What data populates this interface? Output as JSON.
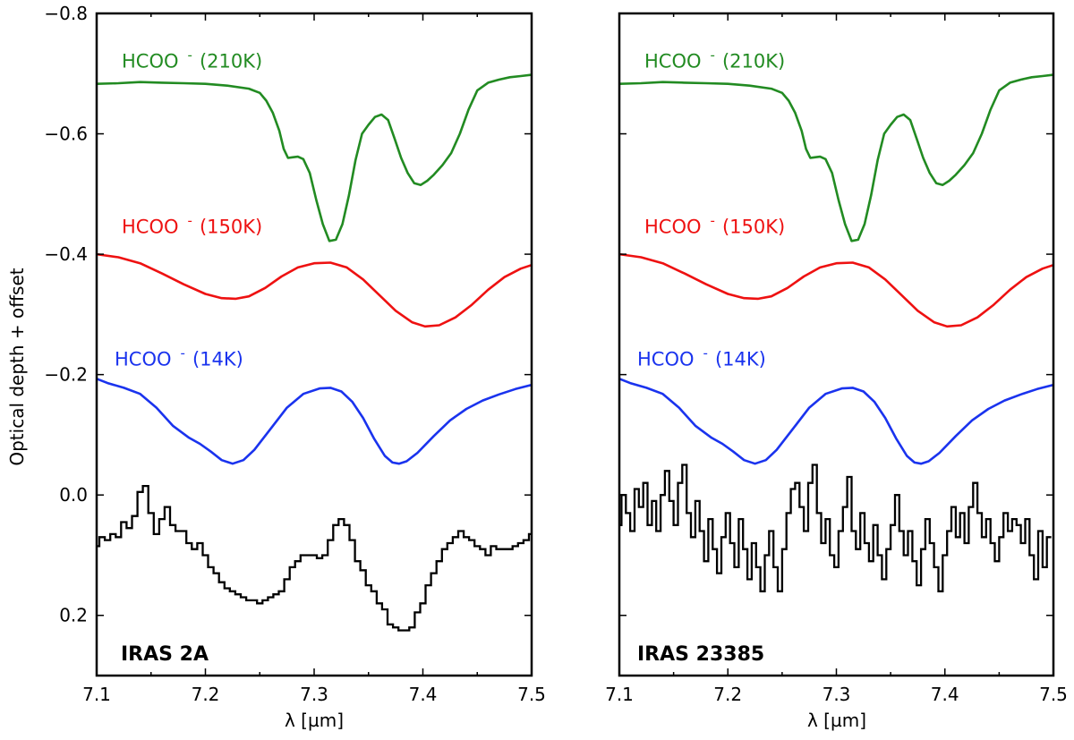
{
  "chart_data": [
    {
      "type": "line",
      "title": "IRAS 2A",
      "xlabel": "λ [µm]",
      "ylabel": "Optical depth + offset",
      "xlim": [
        7.1,
        7.5
      ],
      "ylim": [
        0.3,
        -0.8
      ],
      "x_ticks": [
        "7.1",
        "7.2",
        "7.3",
        "7.4",
        "7.5"
      ],
      "y_ticks": [
        "−0.8",
        "−0.6",
        "−0.4",
        "−0.2",
        "0.0",
        "0.2"
      ],
      "series": [
        {
          "name": "HCOO (210K)",
          "label_main": "HCOO",
          "label_sup": "-",
          "label_paren": "(210K)",
          "color": "#228b22",
          "x": [
            7.1,
            7.12,
            7.14,
            7.16,
            7.18,
            7.2,
            7.22,
            7.24,
            7.25,
            7.256,
            7.262,
            7.268,
            7.272,
            7.276,
            7.28,
            7.285,
            7.29,
            7.296,
            7.302,
            7.308,
            7.314,
            7.32,
            7.326,
            7.332,
            7.338,
            7.344,
            7.35,
            7.356,
            7.362,
            7.368,
            7.374,
            7.38,
            7.386,
            7.392,
            7.398,
            7.404,
            7.41,
            7.418,
            7.426,
            7.434,
            7.442,
            7.45,
            7.46,
            7.47,
            7.48,
            7.49,
            7.5
          ],
          "y": [
            -0.683,
            -0.684,
            -0.686,
            -0.685,
            -0.684,
            -0.683,
            -0.68,
            -0.675,
            -0.668,
            -0.655,
            -0.635,
            -0.605,
            -0.575,
            -0.56,
            -0.561,
            -0.562,
            -0.558,
            -0.535,
            -0.49,
            -0.45,
            -0.422,
            -0.424,
            -0.45,
            -0.498,
            -0.556,
            -0.6,
            -0.615,
            -0.628,
            -0.632,
            -0.623,
            -0.592,
            -0.56,
            -0.535,
            -0.518,
            -0.515,
            -0.522,
            -0.532,
            -0.548,
            -0.568,
            -0.6,
            -0.64,
            -0.672,
            -0.685,
            -0.69,
            -0.694,
            -0.696,
            -0.698
          ]
        },
        {
          "name": "HCOO (150K)",
          "label_main": "HCOO",
          "label_sup": "-",
          "label_paren": "(150K)",
          "color": "#ee1111",
          "x": [
            7.1,
            7.12,
            7.14,
            7.16,
            7.18,
            7.2,
            7.215,
            7.228,
            7.24,
            7.255,
            7.27,
            7.285,
            7.3,
            7.315,
            7.33,
            7.345,
            7.36,
            7.375,
            7.39,
            7.402,
            7.415,
            7.43,
            7.445,
            7.46,
            7.475,
            7.49,
            7.5
          ],
          "y": [
            -0.4,
            -0.395,
            -0.385,
            -0.368,
            -0.35,
            -0.334,
            -0.327,
            -0.326,
            -0.33,
            -0.344,
            -0.363,
            -0.378,
            -0.385,
            -0.386,
            -0.378,
            -0.358,
            -0.332,
            -0.306,
            -0.287,
            -0.28,
            -0.282,
            -0.295,
            -0.316,
            -0.341,
            -0.362,
            -0.376,
            -0.382
          ]
        },
        {
          "name": "HCOO (14K)",
          "label_main": "HCOO",
          "label_sup": "-",
          "label_paren": "(14K)",
          "color": "#1a33ee",
          "x": [
            7.1,
            7.11,
            7.125,
            7.14,
            7.155,
            7.17,
            7.185,
            7.195,
            7.205,
            7.215,
            7.225,
            7.235,
            7.245,
            7.26,
            7.275,
            7.29,
            7.305,
            7.315,
            7.325,
            7.335,
            7.345,
            7.355,
            7.365,
            7.372,
            7.378,
            7.385,
            7.395,
            7.41,
            7.425,
            7.44,
            7.455,
            7.47,
            7.485,
            7.5
          ],
          "y": [
            -0.193,
            -0.186,
            -0.178,
            -0.168,
            -0.145,
            -0.115,
            -0.095,
            -0.085,
            -0.072,
            -0.058,
            -0.052,
            -0.058,
            -0.075,
            -0.11,
            -0.145,
            -0.168,
            -0.177,
            -0.178,
            -0.172,
            -0.155,
            -0.128,
            -0.094,
            -0.065,
            -0.054,
            -0.052,
            -0.056,
            -0.07,
            -0.098,
            -0.124,
            -0.143,
            -0.157,
            -0.167,
            -0.176,
            -0.183
          ]
        },
        {
          "name": "IRAS 2A observed",
          "color": "#000000",
          "x": [
            7.1,
            7.105,
            7.11,
            7.115,
            7.12,
            7.125,
            7.13,
            7.135,
            7.14,
            7.145,
            7.15,
            7.155,
            7.16,
            7.165,
            7.17,
            7.175,
            7.18,
            7.185,
            7.19,
            7.195,
            7.2,
            7.205,
            7.21,
            7.215,
            7.22,
            7.225,
            7.23,
            7.235,
            7.24,
            7.245,
            7.25,
            7.255,
            7.26,
            7.265,
            7.27,
            7.275,
            7.28,
            7.285,
            7.29,
            7.295,
            7.3,
            7.305,
            7.31,
            7.315,
            7.32,
            7.325,
            7.33,
            7.335,
            7.34,
            7.345,
            7.35,
            7.355,
            7.36,
            7.365,
            7.37,
            7.375,
            7.38,
            7.385,
            7.39,
            7.395,
            7.4,
            7.405,
            7.41,
            7.415,
            7.42,
            7.425,
            7.43,
            7.435,
            7.44,
            7.445,
            7.45,
            7.455,
            7.46,
            7.465,
            7.47,
            7.475,
            7.48,
            7.485,
            7.49,
            7.495,
            7.5
          ],
          "y": [
            0.085,
            0.07,
            0.075,
            0.065,
            0.07,
            0.045,
            0.055,
            0.035,
            -0.005,
            -0.015,
            0.03,
            0.065,
            0.04,
            0.02,
            0.05,
            0.06,
            0.06,
            0.08,
            0.09,
            0.08,
            0.1,
            0.12,
            0.13,
            0.145,
            0.155,
            0.16,
            0.165,
            0.17,
            0.175,
            0.175,
            0.18,
            0.175,
            0.17,
            0.165,
            0.16,
            0.14,
            0.12,
            0.11,
            0.1,
            0.1,
            0.1,
            0.105,
            0.1,
            0.075,
            0.05,
            0.04,
            0.05,
            0.075,
            0.11,
            0.125,
            0.15,
            0.16,
            0.18,
            0.19,
            0.215,
            0.22,
            0.225,
            0.225,
            0.22,
            0.195,
            0.18,
            0.15,
            0.13,
            0.11,
            0.09,
            0.08,
            0.07,
            0.06,
            0.07,
            0.075,
            0.085,
            0.09,
            0.1,
            0.085,
            0.09,
            0.09,
            0.09,
            0.085,
            0.08,
            0.075,
            0.065
          ]
        }
      ]
    },
    {
      "type": "line",
      "title": "IRAS 23385",
      "xlabel": "λ [µm]",
      "xlim": [
        7.1,
        7.5
      ],
      "ylim": [
        0.3,
        -0.8
      ],
      "x_ticks": [
        "7.1",
        "7.2",
        "7.3",
        "7.4",
        "7.5"
      ],
      "series": [
        {
          "name": "HCOO (210K)",
          "label_main": "HCOO",
          "label_sup": "-",
          "label_paren": "(210K)",
          "color": "#228b22",
          "x": [
            7.1,
            7.12,
            7.14,
            7.16,
            7.18,
            7.2,
            7.22,
            7.24,
            7.25,
            7.256,
            7.262,
            7.268,
            7.272,
            7.276,
            7.28,
            7.285,
            7.29,
            7.296,
            7.302,
            7.308,
            7.314,
            7.32,
            7.326,
            7.332,
            7.338,
            7.344,
            7.35,
            7.356,
            7.362,
            7.368,
            7.374,
            7.38,
            7.386,
            7.392,
            7.398,
            7.404,
            7.41,
            7.418,
            7.426,
            7.434,
            7.442,
            7.45,
            7.46,
            7.47,
            7.48,
            7.49,
            7.5
          ],
          "y": [
            -0.683,
            -0.684,
            -0.686,
            -0.685,
            -0.684,
            -0.683,
            -0.68,
            -0.675,
            -0.668,
            -0.655,
            -0.635,
            -0.605,
            -0.575,
            -0.56,
            -0.561,
            -0.562,
            -0.558,
            -0.535,
            -0.49,
            -0.45,
            -0.422,
            -0.424,
            -0.45,
            -0.498,
            -0.556,
            -0.6,
            -0.615,
            -0.628,
            -0.632,
            -0.623,
            -0.592,
            -0.56,
            -0.535,
            -0.518,
            -0.515,
            -0.522,
            -0.532,
            -0.548,
            -0.568,
            -0.6,
            -0.64,
            -0.672,
            -0.685,
            -0.69,
            -0.694,
            -0.696,
            -0.698
          ]
        },
        {
          "name": "HCOO (150K)",
          "label_main": "HCOO",
          "label_sup": "-",
          "label_paren": "(150K)",
          "color": "#ee1111",
          "x": [
            7.1,
            7.12,
            7.14,
            7.16,
            7.18,
            7.2,
            7.215,
            7.228,
            7.24,
            7.255,
            7.27,
            7.285,
            7.3,
            7.315,
            7.33,
            7.345,
            7.36,
            7.375,
            7.39,
            7.402,
            7.415,
            7.43,
            7.445,
            7.46,
            7.475,
            7.49,
            7.5
          ],
          "y": [
            -0.4,
            -0.395,
            -0.385,
            -0.368,
            -0.35,
            -0.334,
            -0.327,
            -0.326,
            -0.33,
            -0.344,
            -0.363,
            -0.378,
            -0.385,
            -0.386,
            -0.378,
            -0.358,
            -0.332,
            -0.306,
            -0.287,
            -0.28,
            -0.282,
            -0.295,
            -0.316,
            -0.341,
            -0.362,
            -0.376,
            -0.382
          ]
        },
        {
          "name": "HCOO (14K)",
          "label_main": "HCOO",
          "label_sup": "-",
          "label_paren": "(14K)",
          "color": "#1a33ee",
          "x": [
            7.1,
            7.11,
            7.125,
            7.14,
            7.155,
            7.17,
            7.185,
            7.195,
            7.205,
            7.215,
            7.225,
            7.235,
            7.245,
            7.26,
            7.275,
            7.29,
            7.305,
            7.315,
            7.325,
            7.335,
            7.345,
            7.355,
            7.365,
            7.372,
            7.378,
            7.385,
            7.395,
            7.41,
            7.425,
            7.44,
            7.455,
            7.47,
            7.485,
            7.5
          ],
          "y": [
            -0.193,
            -0.186,
            -0.178,
            -0.168,
            -0.145,
            -0.115,
            -0.095,
            -0.085,
            -0.072,
            -0.058,
            -0.052,
            -0.058,
            -0.075,
            -0.11,
            -0.145,
            -0.168,
            -0.177,
            -0.178,
            -0.172,
            -0.155,
            -0.128,
            -0.094,
            -0.065,
            -0.054,
            -0.052,
            -0.056,
            -0.07,
            -0.098,
            -0.124,
            -0.143,
            -0.157,
            -0.167,
            -0.176,
            -0.183
          ]
        },
        {
          "name": "IRAS 23385 observed",
          "color": "#000000",
          "x": [
            7.1,
            7.104,
            7.108,
            7.112,
            7.116,
            7.12,
            7.124,
            7.128,
            7.132,
            7.136,
            7.14,
            7.144,
            7.148,
            7.152,
            7.156,
            7.16,
            7.164,
            7.168,
            7.172,
            7.176,
            7.18,
            7.184,
            7.188,
            7.192,
            7.196,
            7.2,
            7.204,
            7.208,
            7.212,
            7.216,
            7.22,
            7.224,
            7.228,
            7.232,
            7.236,
            7.24,
            7.244,
            7.248,
            7.252,
            7.256,
            7.26,
            7.264,
            7.268,
            7.272,
            7.276,
            7.28,
            7.284,
            7.288,
            7.292,
            7.296,
            7.3,
            7.304,
            7.308,
            7.312,
            7.316,
            7.32,
            7.324,
            7.328,
            7.332,
            7.336,
            7.34,
            7.344,
            7.348,
            7.352,
            7.356,
            7.36,
            7.364,
            7.368,
            7.372,
            7.376,
            7.38,
            7.384,
            7.388,
            7.392,
            7.396,
            7.4,
            7.404,
            7.408,
            7.412,
            7.416,
            7.42,
            7.424,
            7.428,
            7.432,
            7.436,
            7.44,
            7.444,
            7.448,
            7.452,
            7.456,
            7.46,
            7.464,
            7.468,
            7.472,
            7.476,
            7.48,
            7.484,
            7.488,
            7.492,
            7.496
          ],
          "y": [
            0.05,
            0.0,
            0.03,
            0.06,
            -0.01,
            0.02,
            -0.02,
            0.05,
            0.01,
            0.06,
            0.0,
            -0.04,
            0.01,
            0.05,
            -0.02,
            -0.05,
            0.03,
            0.07,
            0.01,
            0.06,
            0.11,
            0.04,
            0.09,
            0.13,
            0.07,
            0.03,
            0.08,
            0.12,
            0.04,
            0.09,
            0.14,
            0.08,
            0.12,
            0.16,
            0.1,
            0.06,
            0.12,
            0.16,
            0.09,
            0.03,
            -0.01,
            -0.02,
            0.02,
            0.06,
            -0.02,
            -0.05,
            0.03,
            0.08,
            0.04,
            0.1,
            0.12,
            0.06,
            0.02,
            -0.03,
            0.06,
            0.09,
            0.03,
            0.08,
            0.11,
            0.05,
            0.1,
            0.14,
            0.09,
            0.05,
            0.0,
            0.06,
            0.1,
            0.06,
            0.11,
            0.15,
            0.09,
            0.04,
            0.08,
            0.12,
            0.16,
            0.1,
            0.06,
            0.02,
            0.07,
            0.03,
            0.08,
            0.02,
            -0.02,
            0.03,
            0.07,
            0.04,
            0.08,
            0.11,
            0.07,
            0.03,
            0.06,
            0.04,
            0.05,
            0.08,
            0.04,
            0.1,
            0.14,
            0.06,
            0.12,
            0.07
          ]
        }
      ]
    }
  ]
}
